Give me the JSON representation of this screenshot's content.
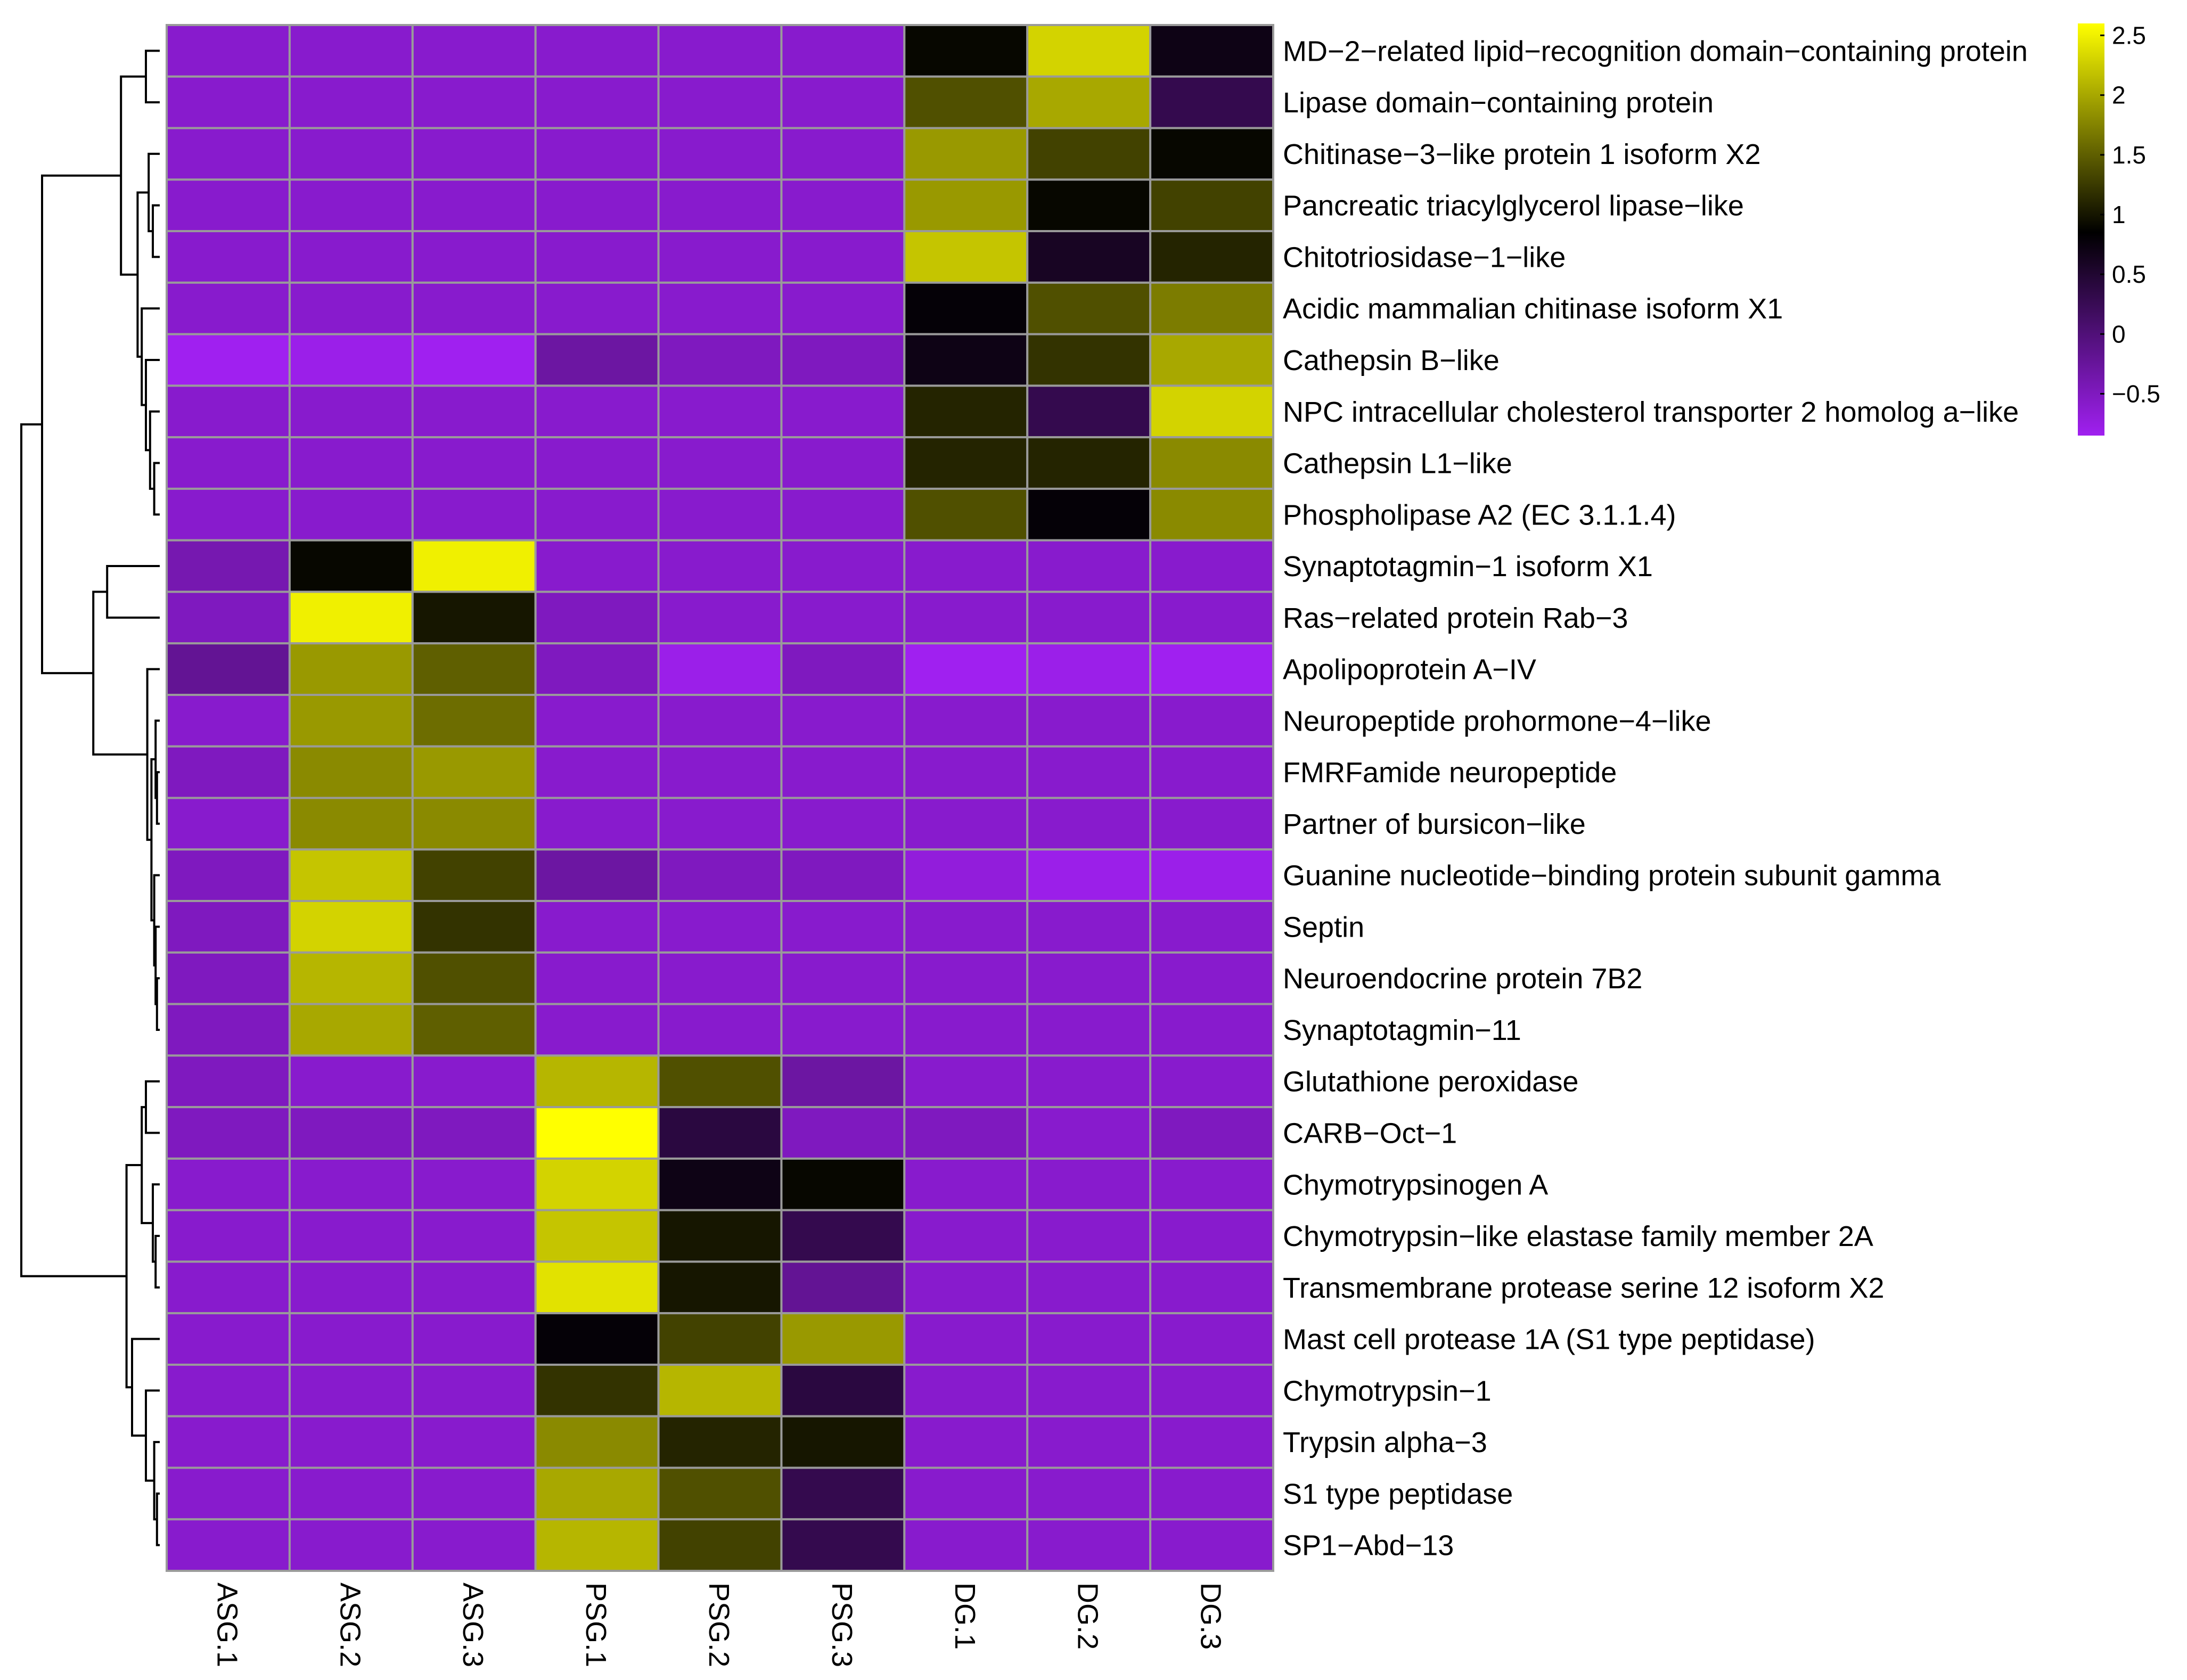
{
  "chart_data": {
    "type": "heatmap",
    "columns": [
      "ASG.1",
      "ASG.2",
      "ASG.3",
      "PSG.1",
      "PSG.2",
      "PSG.3",
      "DG.1",
      "DG.2",
      "DG.3"
    ],
    "rows": [
      "MD−2−related lipid−recognition domain−containing protein",
      "Lipase domain−containing protein",
      "Chitinase−3−like protein 1 isoform X2",
      "Pancreatic triacylglycerol lipase−like",
      "Chitotriosidase−1−like",
      "Acidic mammalian chitinase isoform X1",
      "Cathepsin B−like",
      "NPC intracellular cholesterol transporter 2 homolog a−like",
      "Cathepsin L1−like",
      "Phospholipase A2 (EC 3.1.1.4)",
      "Synaptotagmin−1 isoform X1",
      "Ras−related protein Rab−3",
      "Apolipoprotein A−IV",
      "Neuropeptide prohormone−4−like",
      "FMRFamide neuropeptide",
      "Partner of bursicon−like",
      "Guanine nucleotide−binding protein subunit gamma",
      "Septin",
      "Neuroendocrine protein 7B2",
      "Synaptotagmin−11",
      "Glutathione peroxidase",
      "CARB−Oct−1",
      "Chymotrypsinogen A",
      "Chymotrypsin−like elastase family member 2A",
      "Transmembrane protease serine 12 isoform X2",
      "Mast cell protease 1A  (S1 type peptidase)",
      "Chymotrypsin−1",
      "Trypsin alpha−3",
      "S1 type peptidase",
      "SP1−Abd−13"
    ],
    "values": [
      [
        -0.6,
        -0.6,
        -0.6,
        -0.6,
        -0.6,
        -0.6,
        0.9,
        2.3,
        0.7
      ],
      [
        -0.6,
        -0.6,
        -0.6,
        -0.6,
        -0.6,
        -0.6,
        1.4,
        2.0,
        0.3
      ],
      [
        -0.6,
        -0.6,
        -0.6,
        -0.6,
        -0.6,
        -0.6,
        1.9,
        1.3,
        0.9
      ],
      [
        -0.6,
        -0.6,
        -0.6,
        -0.6,
        -0.6,
        -0.6,
        1.9,
        0.9,
        1.3
      ],
      [
        -0.6,
        -0.6,
        -0.6,
        -0.6,
        -0.6,
        -0.6,
        2.2,
        0.6,
        1.1
      ],
      [
        -0.6,
        -0.6,
        -0.6,
        -0.6,
        -0.6,
        -0.6,
        0.8,
        1.4,
        1.7
      ],
      [
        -0.9,
        -0.8,
        -0.9,
        -0.3,
        -0.5,
        -0.5,
        0.7,
        1.2,
        2.0
      ],
      [
        -0.6,
        -0.6,
        -0.6,
        -0.6,
        -0.6,
        -0.6,
        1.1,
        0.3,
        2.3
      ],
      [
        -0.6,
        -0.6,
        -0.6,
        -0.6,
        -0.6,
        -0.6,
        1.1,
        1.1,
        1.8
      ],
      [
        -0.6,
        -0.6,
        -0.6,
        -0.6,
        -0.6,
        -0.6,
        1.4,
        0.8,
        1.8
      ],
      [
        -0.4,
        0.9,
        2.5,
        -0.6,
        -0.6,
        -0.6,
        -0.6,
        -0.6,
        -0.6
      ],
      [
        -0.5,
        2.5,
        1.0,
        -0.5,
        -0.6,
        -0.6,
        -0.6,
        -0.6,
        -0.6
      ],
      [
        -0.2,
        1.9,
        1.5,
        -0.5,
        -0.8,
        -0.5,
        -0.9,
        -0.8,
        -0.9
      ],
      [
        -0.6,
        1.9,
        1.6,
        -0.6,
        -0.6,
        -0.6,
        -0.6,
        -0.6,
        -0.6
      ],
      [
        -0.5,
        1.8,
        1.9,
        -0.6,
        -0.6,
        -0.6,
        -0.6,
        -0.6,
        -0.6
      ],
      [
        -0.6,
        1.8,
        1.8,
        -0.6,
        -0.6,
        -0.6,
        -0.6,
        -0.6,
        -0.6
      ],
      [
        -0.5,
        2.2,
        1.3,
        -0.3,
        -0.5,
        -0.5,
        -0.7,
        -0.8,
        -0.8
      ],
      [
        -0.5,
        2.3,
        1.2,
        -0.6,
        -0.6,
        -0.6,
        -0.6,
        -0.6,
        -0.6
      ],
      [
        -0.5,
        2.1,
        1.4,
        -0.6,
        -0.6,
        -0.6,
        -0.6,
        -0.6,
        -0.6
      ],
      [
        -0.5,
        2.0,
        1.5,
        -0.6,
        -0.6,
        -0.6,
        -0.6,
        -0.6,
        -0.6
      ],
      [
        -0.5,
        -0.6,
        -0.6,
        2.1,
        1.4,
        -0.3,
        -0.6,
        -0.6,
        -0.6
      ],
      [
        -0.5,
        -0.5,
        -0.5,
        2.6,
        0.4,
        -0.5,
        -0.5,
        -0.6,
        -0.5
      ],
      [
        -0.6,
        -0.6,
        -0.6,
        2.3,
        0.7,
        0.9,
        -0.6,
        -0.6,
        -0.6
      ],
      [
        -0.6,
        -0.6,
        -0.6,
        2.2,
        1.0,
        0.3,
        -0.6,
        -0.6,
        -0.6
      ],
      [
        -0.6,
        -0.6,
        -0.6,
        2.4,
        1.0,
        -0.2,
        -0.6,
        -0.6,
        -0.6
      ],
      [
        -0.6,
        -0.6,
        -0.6,
        0.8,
        1.3,
        1.9,
        -0.6,
        -0.6,
        -0.6
      ],
      [
        -0.6,
        -0.6,
        -0.6,
        1.2,
        2.1,
        0.4,
        -0.6,
        -0.6,
        -0.6
      ],
      [
        -0.6,
        -0.6,
        -0.6,
        1.8,
        1.1,
        1.0,
        -0.6,
        -0.6,
        -0.6
      ],
      [
        -0.6,
        -0.6,
        -0.6,
        2.0,
        1.4,
        0.3,
        -0.6,
        -0.6,
        -0.6
      ],
      [
        -0.6,
        -0.6,
        -0.6,
        2.1,
        1.3,
        0.3,
        -0.6,
        -0.6,
        -0.6
      ]
    ],
    "color_scale": {
      "min": -0.85,
      "max": 2.6,
      "ticks": [
        2.5,
        2,
        1.5,
        1,
        0.5,
        0,
        -0.5
      ],
      "tick_labels": [
        "2.5",
        "2",
        "1.5",
        "1",
        "0.5",
        "0",
        "−0.5"
      ],
      "stops": [
        {
          "value": -0.85,
          "color": "#a020f0"
        },
        {
          "value": 0.85,
          "color": "#000000"
        },
        {
          "value": 2.6,
          "color": "#ffff00"
        }
      ]
    },
    "row_dendrogram": "hierarchical clustering of the 30 rows (3 main clusters)",
    "grid_color": "#9a9a9a"
  }
}
